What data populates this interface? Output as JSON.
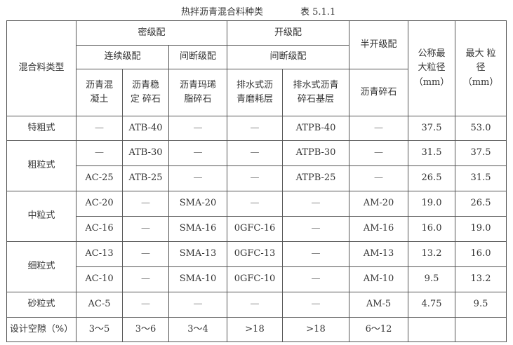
{
  "caption": {
    "title": "热拌沥青混合料种类",
    "table_no": "表 5.1.1"
  },
  "header": {
    "mix_type": "混合料类型",
    "dense": "密级配",
    "open": "开级配",
    "semi_open": "半开级配",
    "nominal_max": [
      "公称最",
      "大粒径",
      "（mm）"
    ],
    "max_size": [
      "最大 粒",
      "径",
      "（mm）"
    ],
    "continuous": "连续级配",
    "gap_dense": "间断级配",
    "gap_open": "间断级配",
    "ac": [
      "沥青混",
      "凝土"
    ],
    "atb": [
      "沥青稳",
      "定 碎石"
    ],
    "sma": [
      "沥青玛琋",
      "脂碎石"
    ],
    "ogfc": [
      "排水式沥",
      "青磨耗层"
    ],
    "atpb": [
      "排水式沥青",
      "碎石基层"
    ],
    "am": "沥青碎石"
  },
  "rows": [
    {
      "type": "特粗式",
      "ac": "—",
      "atb": "ATB-40",
      "sma": "—",
      "ogfc": "—",
      "atpb": "ATPB-40",
      "am": "—",
      "nominal": "37.5",
      "max": "53.0"
    },
    {
      "type": "粗粒式",
      "ac": "—",
      "atb": "ATB-30",
      "sma": "—",
      "ogfc": "—",
      "atpb": "ATPB-30",
      "am": "—",
      "nominal": "31.5",
      "max": "37.5"
    },
    {
      "ac": "AC-25",
      "atb": "ATB-25",
      "sma": "—",
      "ogfc": "—",
      "atpb": "ATPB-25",
      "am": "—",
      "nominal": "26.5",
      "max": "31.5"
    },
    {
      "type": "中粒式",
      "ac": "AC-20",
      "atb": "—",
      "sma": "SMA-20",
      "ogfc": "—",
      "atpb": "—",
      "am": "AM-20",
      "nominal": "19.0",
      "max": "26.5"
    },
    {
      "ac": "AC-16",
      "atb": "—",
      "sma": "SMA-16",
      "ogfc": "0GFC-16",
      "atpb": "—",
      "am": "AM-16",
      "nominal": "16.0",
      "max": "19.0"
    },
    {
      "type": "细粒式",
      "ac": "AC-13",
      "atb": "—",
      "sma": "SMA-13",
      "ogfc": "0GFC-13",
      "atpb": "—",
      "am": "AM-13",
      "nominal": "13.2",
      "max": "16.0"
    },
    {
      "ac": "AC-10",
      "atb": "—",
      "sma": "SMA-10",
      "ogfc": "0GFC-10",
      "atpb": "—",
      "am": "AM-10",
      "nominal": "9.5",
      "max": "13.2"
    },
    {
      "type": "砂粒式",
      "ac": "AC-5",
      "atb": "—",
      "sma": "—",
      "ogfc": "—",
      "atpb": "—",
      "am": "AM-5",
      "nominal": "4.75",
      "max": "9.5"
    }
  ],
  "voids": {
    "label": "设计空隙（%）",
    "ac": "3～5",
    "atb": "3～6",
    "sma": "3～4",
    "ogfc": ">18",
    "atpb": ">18",
    "am": "6～12"
  }
}
